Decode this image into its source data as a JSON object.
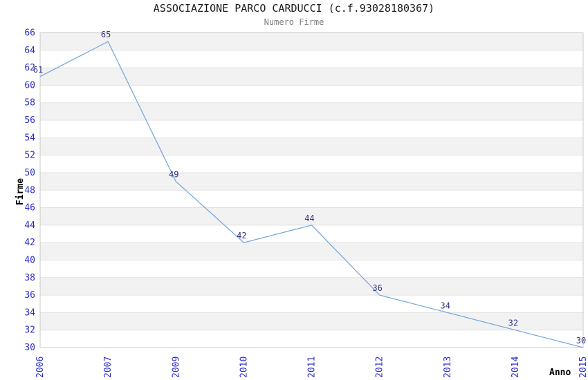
{
  "chart_data": {
    "type": "line",
    "title": "ASSOCIAZIONE PARCO CARDUCCI (c.f.93028180367)",
    "subtitle": "Numero Firme",
    "xlabel": "Anno",
    "ylabel": "Firme",
    "x": [
      "2006",
      "2007",
      "2009",
      "2010",
      "2011",
      "2012",
      "2013",
      "2014",
      "2015"
    ],
    "series": [
      {
        "name": "Numero Firme",
        "values": [
          61,
          65,
          49,
          42,
          44,
          36,
          34,
          32,
          30
        ]
      }
    ],
    "data_labels": [
      "61",
      "65",
      "49",
      "42",
      "44",
      "36",
      "34",
      "32",
      "30"
    ],
    "ylim": [
      30,
      66
    ],
    "ytick_step": 2,
    "ytick_labels": [
      "30",
      "32",
      "34",
      "36",
      "38",
      "40",
      "42",
      "44",
      "46",
      "48",
      "50",
      "52",
      "54",
      "56",
      "58",
      "60",
      "62",
      "64",
      "66"
    ],
    "grid": "horizontal-gridlines-with-alternating-bands",
    "legend": "none",
    "colors": {
      "line": "#7aa8dc",
      "band": "#f2f2f2",
      "gridline": "#e2e2e2",
      "plot_border": "#c8c8c8",
      "tick_label": "#2b2bcc",
      "data_label": "#333380",
      "title": "#1a1a1a",
      "subtitle": "#7d7d7d",
      "axis_name": "#000000",
      "background": "#ffffff"
    }
  }
}
